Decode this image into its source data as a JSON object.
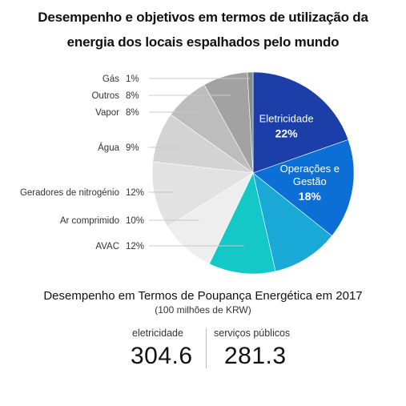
{
  "header": {
    "title_line1": "Desempenho e objetivos em termos de utilização da",
    "title_line2": "energia dos locais espalhados pelo mundo"
  },
  "chart_data": {
    "type": "pie",
    "title": "Desempenho e objetivos em termos de utilização da energia dos locais espalhados pelo mundo",
    "slices": [
      {
        "label": "Eletricidade",
        "value": 22,
        "display": "22%",
        "color": "#1b3ea8",
        "label_inside": true
      },
      {
        "label": "Operações e Gestão",
        "label_lines": [
          "Operações e",
          "Gestão"
        ],
        "value": 18,
        "display": "18%",
        "color": "#0b6fd6",
        "label_inside": true
      },
      {
        "label": "",
        "value": 12,
        "display": "",
        "color": "#1aa9d6",
        "label_inside": false
      },
      {
        "label": "AVAC",
        "value": 12,
        "display": "12%",
        "color": "#14c8c8",
        "label_inside": false
      },
      {
        "label": "Ar comprimido",
        "value": 10,
        "display": "10%",
        "color": "#eeeeee",
        "label_inside": false
      },
      {
        "label": "Geradores de nitrogénio",
        "value": 12,
        "display": "12%",
        "color": "#e2e2e2",
        "label_inside": false
      },
      {
        "label": "Água",
        "value": 9,
        "display": "9%",
        "color": "#d3d3d3",
        "label_inside": false
      },
      {
        "label": "Vapor",
        "value": 8,
        "display": "8%",
        "color": "#bdbdbd",
        "label_inside": false
      },
      {
        "label": "Outros",
        "value": 8,
        "display": "8%",
        "color": "#a2a2a2",
        "label_inside": false
      },
      {
        "label": "Gás",
        "value": 1,
        "display": "1%",
        "color": "#8a8a8a",
        "label_inside": false
      }
    ]
  },
  "savings": {
    "title": "Desempenho em Termos de Poupança Energética em 2017",
    "unit": "(100 milhões de KRW)",
    "stats": [
      {
        "label": "eletricidade",
        "value": "304.6"
      },
      {
        "label": "serviços públicos",
        "value": "281.3"
      }
    ]
  }
}
